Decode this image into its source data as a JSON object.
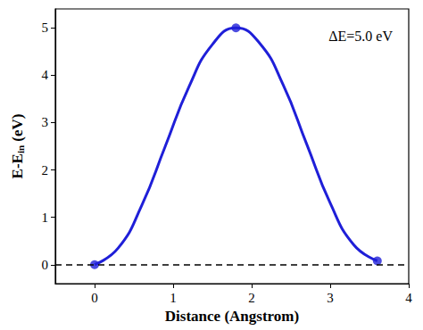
{
  "chart_data": {
    "type": "line",
    "xlabel": "Distance (Angstrom)",
    "ylabel": [
      "E-E",
      "in",
      " (eV)"
    ],
    "annotation": "ΔE=5.0 eV",
    "series": [
      {
        "type": "line",
        "color": "#1f1fd8",
        "marker": "none",
        "line_style": "solid",
        "x": [
          0,
          0.3,
          0.6,
          0.9,
          1.2,
          1.5,
          1.8,
          2.1,
          2.4,
          2.7,
          3.0,
          3.3,
          3.6
        ],
        "values": [
          0,
          0.35,
          1.25,
          2.5,
          3.75,
          4.65,
          5.0,
          4.68,
          3.8,
          2.55,
          1.3,
          0.42,
          0.08
        ]
      },
      {
        "type": "scatter",
        "color": "#1f1fd8",
        "marker": "circle",
        "x": [
          0,
          1.8,
          3.6
        ],
        "values": [
          0,
          5.0,
          0.08
        ]
      }
    ],
    "hline": 0,
    "xlim": [
      -0.5,
      4
    ],
    "xticks": [
      0,
      1,
      2,
      3,
      4
    ],
    "ylim": [
      -0.4,
      5.4
    ],
    "yticks": [
      0,
      1,
      2,
      3,
      4,
      5
    ],
    "grid": false
  }
}
